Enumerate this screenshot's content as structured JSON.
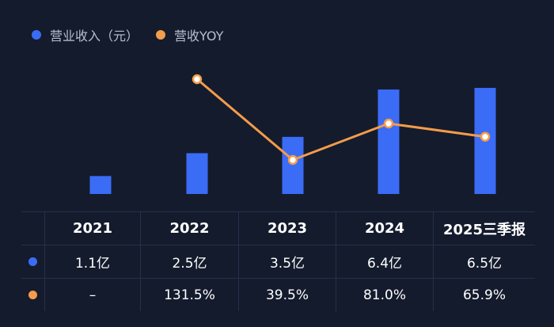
{
  "legend": {
    "revenue_label": "营业收入（元）",
    "yoy_label": "营收YOY"
  },
  "colors": {
    "background": "#141b2d",
    "bar": "#3b6cf6",
    "line": "#f39c4a",
    "grid": "#26304a"
  },
  "table": {
    "headers": [
      "2021",
      "2022",
      "2023",
      "2024",
      "2025三季报"
    ],
    "revenue_row": [
      "1.1亿",
      "2.5亿",
      "3.5亿",
      "6.4亿",
      "6.5亿"
    ],
    "yoy_row": [
      "–",
      "131.5%",
      "39.5%",
      "81.0%",
      "65.9%"
    ]
  },
  "chart_data": {
    "type": "bar",
    "categories": [
      "2021",
      "2022",
      "2023",
      "2024",
      "2025三季报"
    ],
    "series": [
      {
        "name": "营业收入（元）",
        "type": "bar",
        "unit": "亿",
        "values": [
          1.1,
          2.5,
          3.5,
          6.4,
          6.5
        ]
      },
      {
        "name": "营收YOY",
        "type": "line",
        "unit": "%",
        "values": [
          null,
          131.5,
          39.5,
          81.0,
          65.9
        ]
      }
    ],
    "legend_position": "top-left",
    "grid": false
  }
}
